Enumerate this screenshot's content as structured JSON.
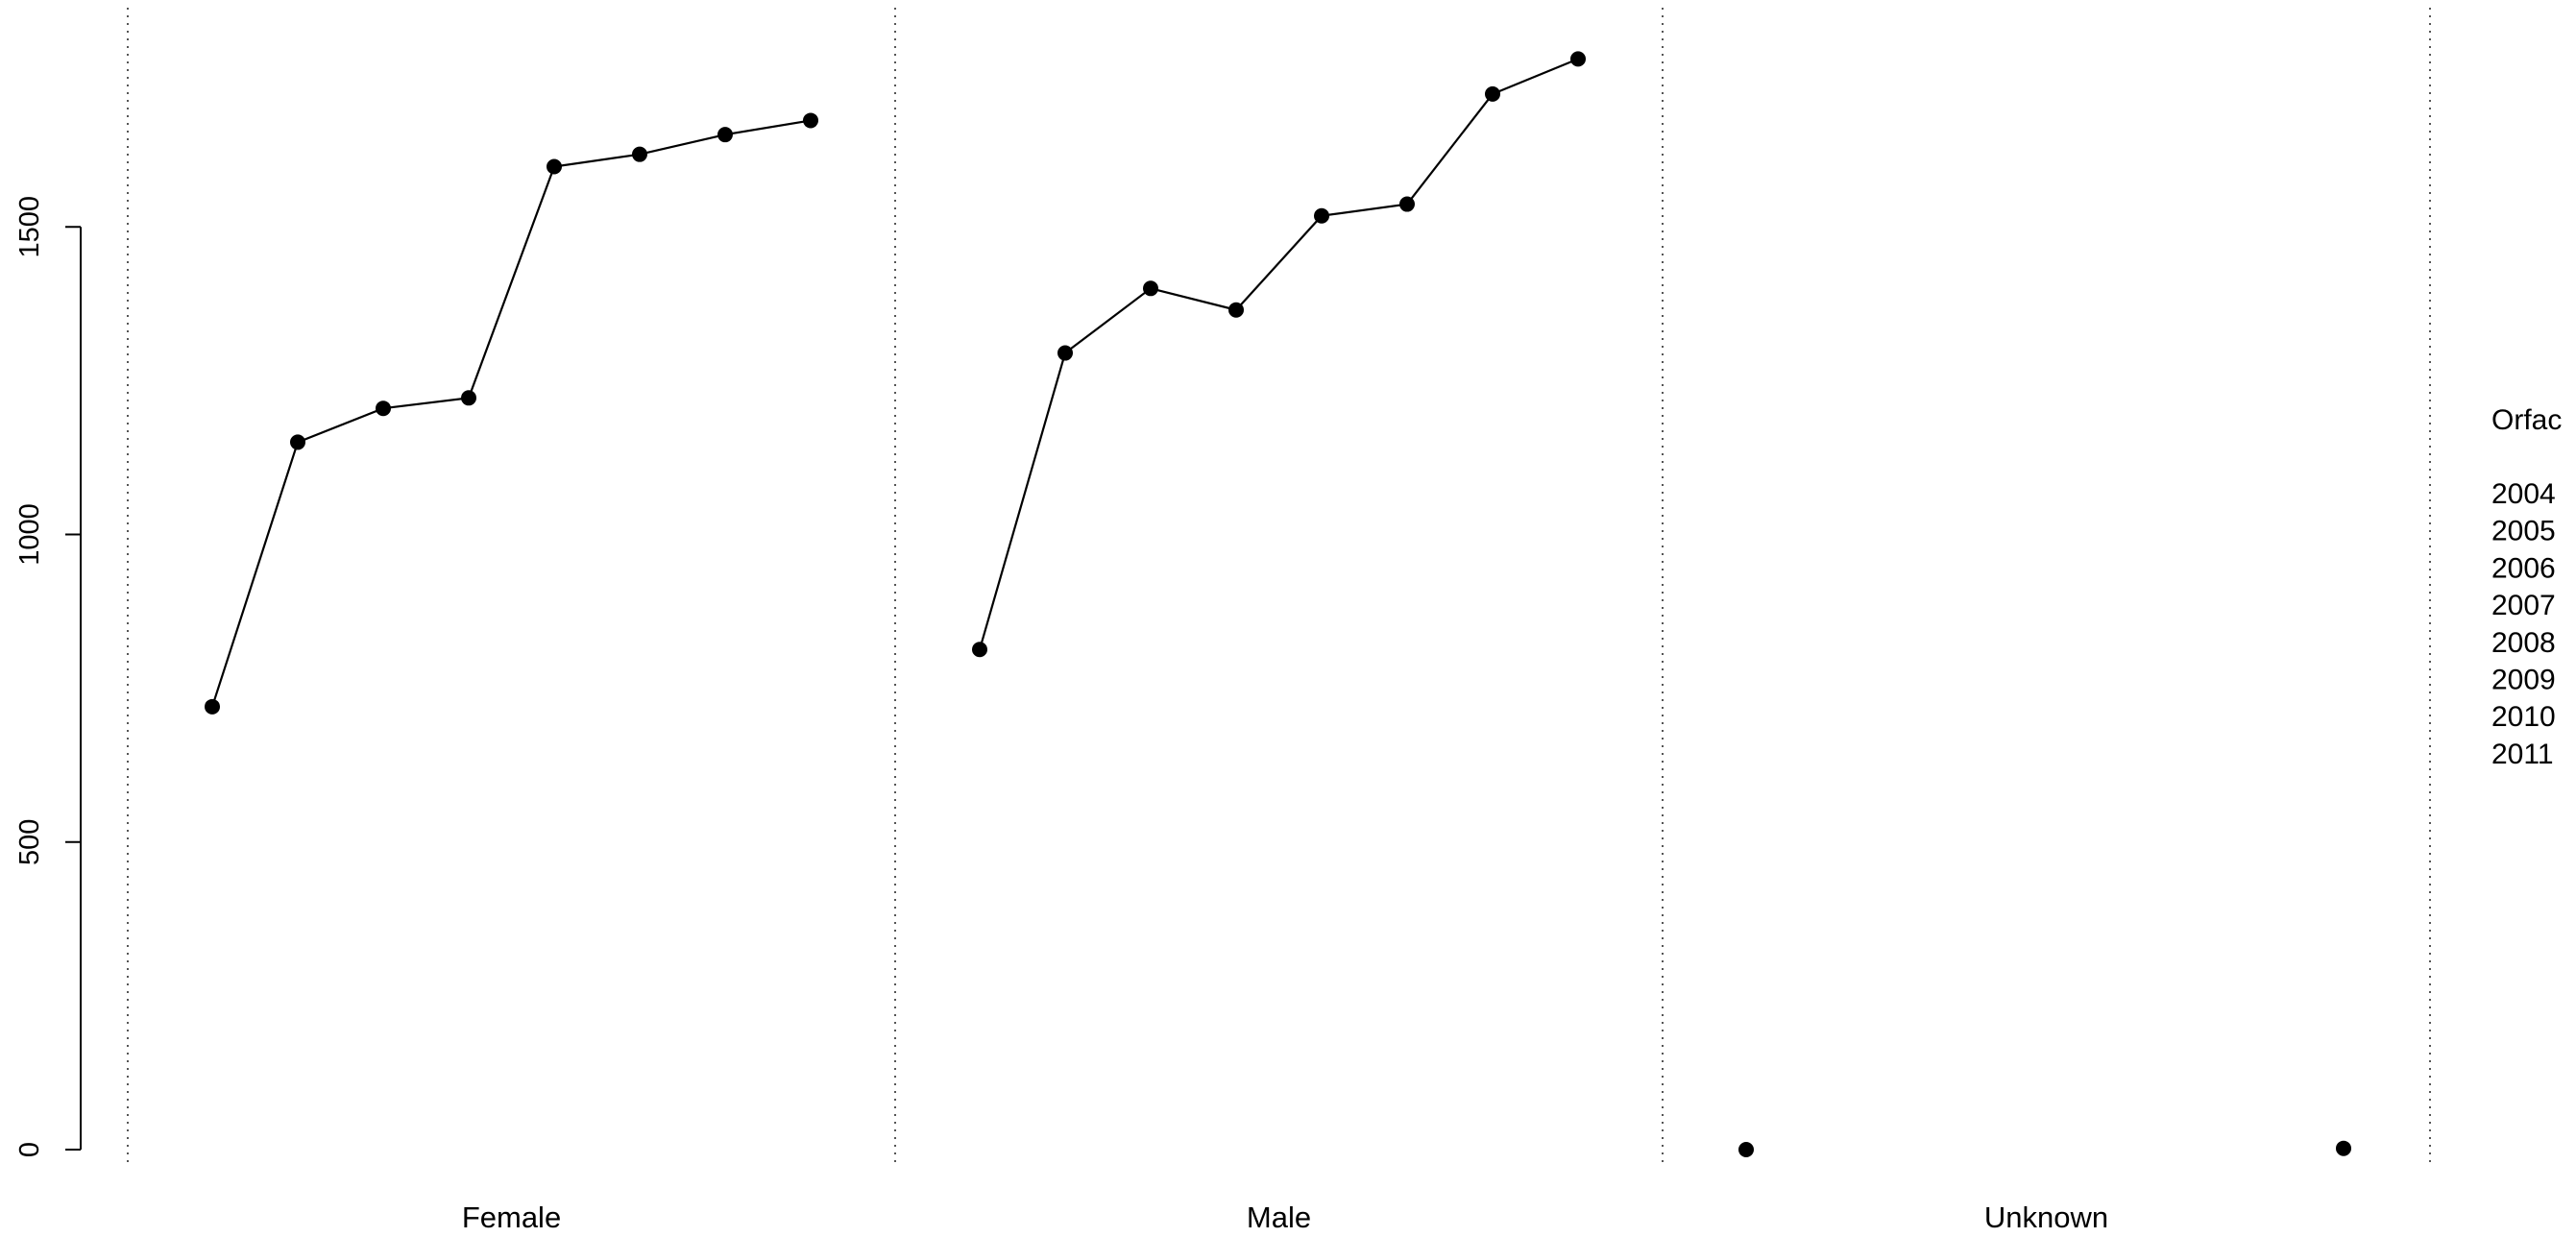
{
  "chart_data": {
    "type": "line",
    "title": "",
    "xlabel": "",
    "ylabel": "",
    "ylim": [
      0,
      1800
    ],
    "y_ticks": [
      0,
      500,
      1000,
      1500
    ],
    "grid": false,
    "colors": {
      "line": "#000000",
      "point": "#000000",
      "divider": "#555555"
    },
    "panels": [
      {
        "name": "Female",
        "x": [
          2004,
          2005,
          2006,
          2007,
          2008,
          2009,
          2010,
          2011
        ],
        "values": [
          720,
          1150,
          1205,
          1222,
          1598,
          1618,
          1650,
          1673
        ]
      },
      {
        "name": "Male",
        "x": [
          2004,
          2005,
          2006,
          2007,
          2008,
          2009,
          2010,
          2011
        ],
        "values": [
          813,
          1295,
          1400,
          1365,
          1518,
          1537,
          1716,
          1773
        ]
      },
      {
        "name": "Unknown",
        "x": [
          2004,
          2011
        ],
        "values": [
          0,
          2
        ]
      }
    ],
    "legend": {
      "title": "Orfac",
      "position": "right",
      "entries": [
        "2004",
        "2005",
        "2006",
        "2007",
        "2008",
        "2009",
        "2010",
        "2011"
      ]
    }
  }
}
